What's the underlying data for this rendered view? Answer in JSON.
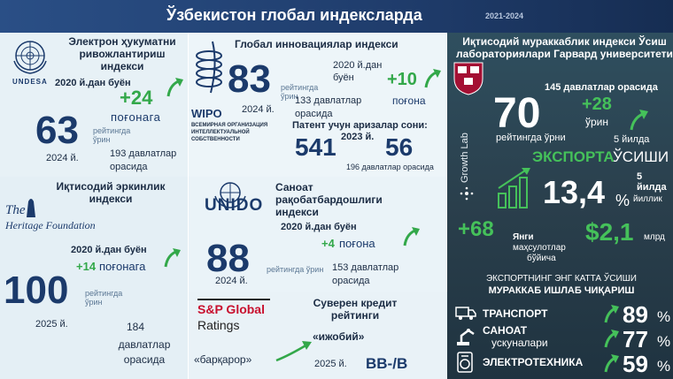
{
  "header": {
    "title": "Ўзбекистон глобал индексларда",
    "years": "2021-2024"
  },
  "undesa": {
    "logo": "UNDESA",
    "title": "Электрон ҳукуматни ривожлантириш индекси",
    "since": "2020 й.дан буён",
    "gain": "+24",
    "gain_unit": "поғонага",
    "rank": "63",
    "rank_label": "рейтингда ўрин",
    "year": "2024 й.",
    "total": "193 давлатлар орасида"
  },
  "wipo": {
    "logo": "WIPO",
    "org": "ВСЕМИРНАЯ ОРГАНИЗАЦИЯ ИНТЕЛЛЕКТУАЛЬНОЙ СОБСТВЕННОСТИ",
    "title": "Глобал инновациялар индекси",
    "rank": "83",
    "rank_label": "рейтингда ўрин",
    "year": "2024 й.",
    "since": "2020 й.дан буён",
    "gain": "+10",
    "gain_unit": "поғона",
    "total": "133 давлатлар орасида",
    "patent_label": "Патент учун аризалар сони:",
    "patent_year": "2023 й.",
    "patent_a": "541",
    "patent_b": "56",
    "patent_note": "196 давлатлар орасида"
  },
  "heritage": {
    "logo_line1": "The",
    "logo_line2": "Heritage Foundation",
    "title": "Иқтисодий эркинлик индекси",
    "since": "2020 й.дан буён",
    "gain": "+14",
    "gain_unit": "поғонага",
    "rank": "100",
    "rank_label": "рейтингда ўрин",
    "year": "2025 й.",
    "total_num": "184",
    "total_label": "давлатлар орасида"
  },
  "unido": {
    "logo": "UNIDO",
    "title": "Саноат рақобатбардошлиги индекси",
    "since": "2020 й.дан буён",
    "gain": "+4",
    "gain_unit": "поғона",
    "rank": "88",
    "rank_label": "рейтингда ўрин",
    "year": "2024 й.",
    "total": "153 давлатлар орасида"
  },
  "sp": {
    "logo_line1": "S&P Global",
    "logo_line2": "Ratings",
    "title": "Суверен кредит рейтинги",
    "outlook": "«ижобий»",
    "stable": "«барқарор»",
    "year": "2025 й.",
    "rating": "BB-/B"
  },
  "harvard": {
    "title": "Иқтисодий мураккаблик индекси Ўсиш лабораториялари Гарвард университети",
    "total": "145 давлатлар орасида",
    "rank": "70",
    "rank_label": "рейтингда ўрни",
    "gain": "+28",
    "gain_unit": "ўрин",
    "gain_period": "5 йилда",
    "lab": "Growth Lab",
    "export_title_a": "ЭКСПОРТА",
    "export_title_b": "ЎСИШИ",
    "export_period": "5 йилда",
    "export_value": "13,4",
    "export_pct": "%",
    "export_unit": "йиллик",
    "new_count": "+68",
    "new_label_a": "Янги",
    "new_label_b": "маҳсулотлар",
    "new_label_c": "бўйича",
    "new_value": "$2,1",
    "new_unit": "млрд",
    "growth_title_a": "ЭКСПОРТНИНГ ЭНГ КАТТА ЎСИШИ",
    "growth_title_b": "МУРАККАБ ИШЛАБ ЧИҚАРИШ",
    "items": [
      {
        "label": "ТРАНСПОРТ",
        "sub": "",
        "value": "89",
        "pct": "%"
      },
      {
        "label": "САНОАТ",
        "sub": "ускуналари",
        "value": "77",
        "pct": "%"
      },
      {
        "label": "ЭЛЕКТРОТЕХНИКА",
        "sub": "",
        "value": "59",
        "pct": "%"
      }
    ]
  },
  "colors": {
    "navy": "#1b3a6b",
    "green": "#33a84a",
    "header": "#244878"
  }
}
